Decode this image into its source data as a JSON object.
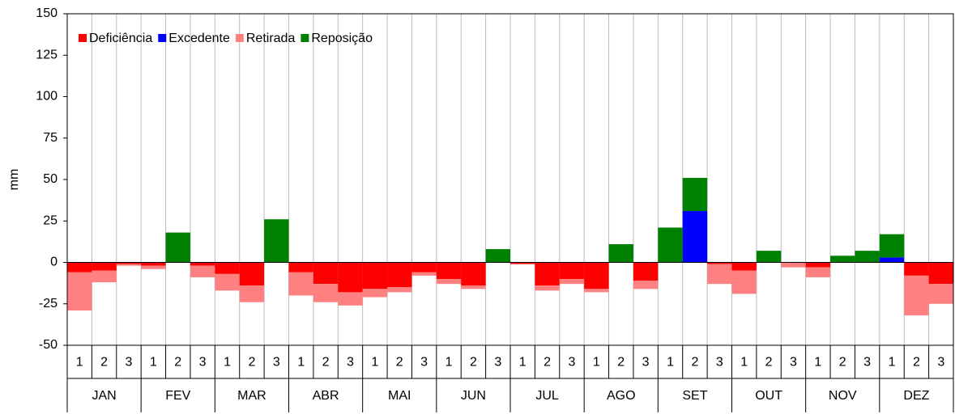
{
  "chart_data": {
    "type": "stacked-bar",
    "y_label": "mm",
    "categories": [
      "1",
      "2",
      "3",
      "1",
      "2",
      "3",
      "1",
      "2",
      "3",
      "1",
      "2",
      "3",
      "1",
      "2",
      "3",
      "1",
      "2",
      "3",
      "1",
      "2",
      "3",
      "1",
      "2",
      "3",
      "1",
      "2",
      "3",
      "1",
      "2",
      "3",
      "1",
      "2",
      "3",
      "1",
      "2",
      "3"
    ],
    "groups": [
      "JAN",
      "FEV",
      "MAR",
      "ABR",
      "MAI",
      "JUN",
      "JUL",
      "AGO",
      "SET",
      "OUT",
      "NOV",
      "DEZ"
    ],
    "series": [
      {
        "name": "Deficiência",
        "color": "#ff0000",
        "values": [
          -6,
          -5,
          -1,
          -2,
          0,
          -2,
          -7,
          -14,
          0,
          -6,
          -13,
          -18,
          -16,
          -15,
          -6,
          -10,
          -14,
          0,
          -1,
          -14,
          -10,
          -16,
          0,
          -11,
          0,
          0,
          -1,
          -5,
          0,
          0,
          -3,
          0,
          0,
          0,
          -8,
          -13
        ]
      },
      {
        "name": "Excedente",
        "color": "#0000ff",
        "values": [
          0,
          0,
          0,
          0,
          0,
          0,
          0,
          0,
          0,
          0,
          0,
          0,
          0,
          0,
          0,
          0,
          0,
          0,
          0,
          0,
          0,
          0,
          0,
          0,
          0,
          31,
          0,
          0,
          0,
          0,
          0,
          0,
          0,
          3,
          0,
          0
        ]
      },
      {
        "name": "Retirada",
        "color": "#ff8080",
        "values": [
          -23,
          -7,
          -1,
          -2,
          0,
          -7,
          -10,
          -10,
          0,
          -14,
          -11,
          -8,
          -5,
          -3,
          -2,
          -3,
          -2,
          0,
          0,
          -3,
          -3,
          -2,
          0,
          -5,
          0,
          0,
          -12,
          -14,
          0,
          -3,
          -6,
          0,
          0,
          0,
          -24,
          -12
        ]
      },
      {
        "name": "Reposição",
        "color": "#008000",
        "values": [
          0,
          0,
          0,
          0,
          18,
          0,
          0,
          0,
          26,
          0,
          0,
          0,
          0,
          0,
          0,
          0,
          0,
          8,
          0,
          0,
          0,
          0,
          11,
          0,
          21,
          20,
          0,
          0,
          7,
          0,
          0,
          4,
          7,
          14,
          0,
          0
        ]
      }
    ],
    "ylim": [
      -50,
      150
    ],
    "yticks": [
      -50,
      -25,
      0,
      25,
      50,
      75,
      100,
      125,
      150
    ],
    "grid": true,
    "legend": "top-left"
  }
}
